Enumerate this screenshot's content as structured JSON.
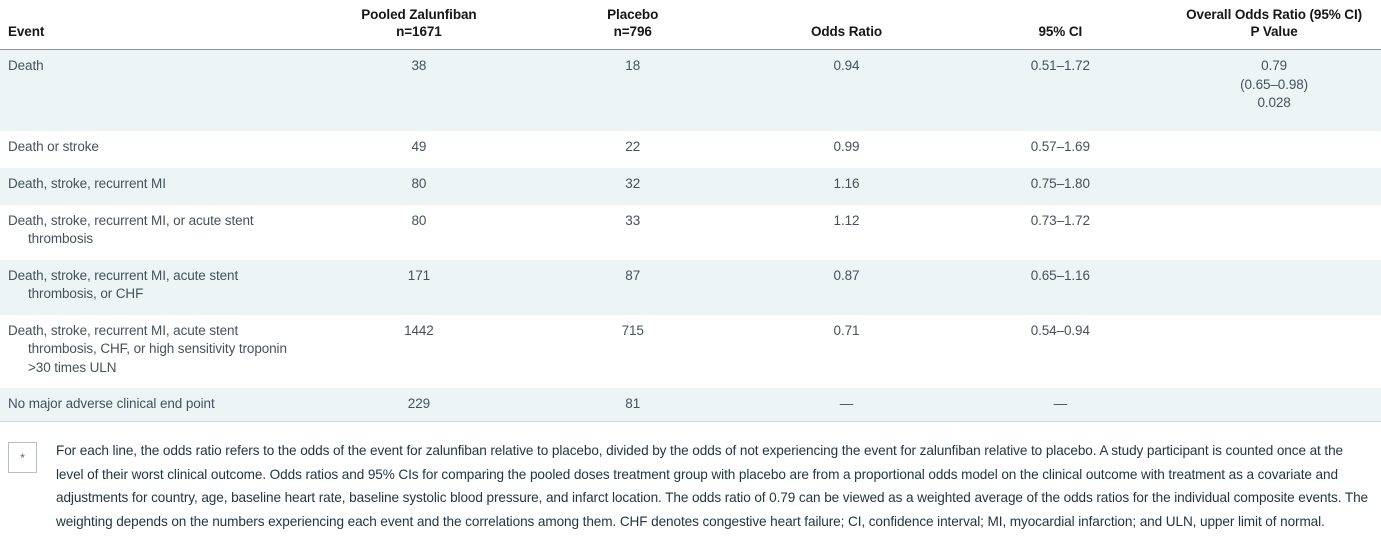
{
  "table": {
    "header": {
      "event": "Event",
      "zalunfiban_main": "Pooled Zalunfiban",
      "zalunfiban_sub": "n=1671",
      "placebo_main": "Placebo",
      "placebo_sub": "n=796",
      "odds_ratio": "Odds Ratio",
      "ci": "95% CI",
      "overall_main": "Overall Odds Ratio (95% CI)",
      "overall_sub": "P Value"
    },
    "rows": [
      {
        "event": "Death",
        "zalunfiban": "38",
        "placebo": "18",
        "odds_ratio": "0.94",
        "ci": "0.51–1.72",
        "overall_or": "0.79",
        "overall_ci": "(0.65–0.98)",
        "overall_p": "0.028"
      },
      {
        "event": "Death or stroke",
        "zalunfiban": "49",
        "placebo": "22",
        "odds_ratio": "0.99",
        "ci": "0.57–1.69"
      },
      {
        "event": "Death, stroke, recurrent MI",
        "zalunfiban": "80",
        "placebo": "32",
        "odds_ratio": "1.16",
        "ci": "0.75–1.80"
      },
      {
        "event": "Death, stroke, recurrent MI, or acute stent thrombosis",
        "zalunfiban": "80",
        "placebo": "33",
        "odds_ratio": "1.12",
        "ci": "0.73–1.72"
      },
      {
        "event": "Death, stroke, recurrent MI, acute stent thrombosis, or CHF",
        "zalunfiban": "171",
        "placebo": "87",
        "odds_ratio": "0.87",
        "ci": "0.65–1.16"
      },
      {
        "event": "Death, stroke, recurrent MI, acute stent thrombosis, CHF, or high sensitivity troponin >30 times ULN",
        "zalunfiban": "1442",
        "placebo": "715",
        "odds_ratio": "0.71",
        "ci": "0.54–0.94"
      },
      {
        "event": "No major adverse clinical end point",
        "zalunfiban": "229",
        "placebo": "81",
        "odds_ratio": "—",
        "ci": "—"
      }
    ]
  },
  "footnote": {
    "marker": "*",
    "text": "For each line, the odds ratio refers to the odds of the event for zalunfiban relative to placebo, divided by the odds of not experiencing the event for zalunfiban relative to placebo. A study participant is counted once at the level of their worst clinical outcome. Odds ratios and 95% CIs for comparing the pooled doses treatment group with placebo are from a proportional odds model on the clinical outcome with treatment as a covariate and adjustments for country, age, baseline heart rate, baseline systolic blood pressure, and infarct location. The odds ratio of 0.79 can be viewed as a weighted average of the odds ratios for the individual composite events. The weighting depends on the numbers experiencing each event and the correlations among them. CHF denotes congestive heart failure; CI, confidence interval; MI, myocardial infarction; and ULN, upper limit of normal."
  },
  "colors": {
    "row_shade": "#edf4f6",
    "body_text": "#44525c",
    "header_text": "#161616",
    "header_rule": "#8a9499",
    "bottom_rule": "#ccd9dd",
    "footnote_text": "#1e3542"
  }
}
